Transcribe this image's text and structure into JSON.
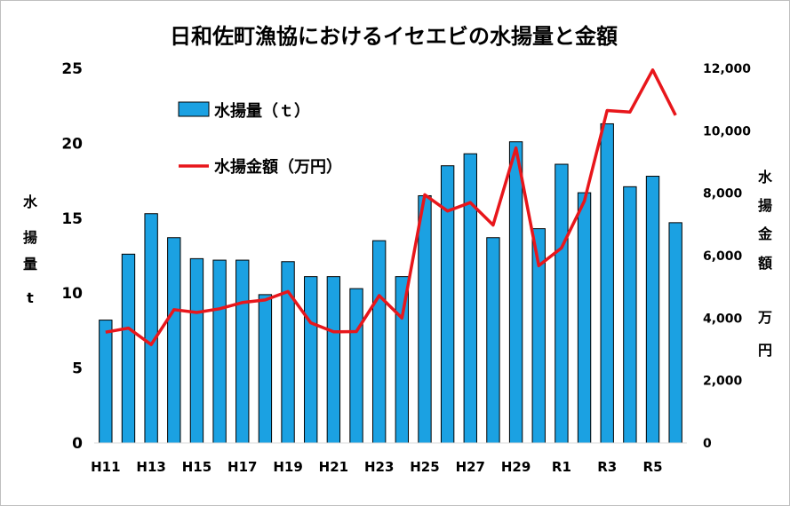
{
  "chart_data": {
    "type": "bar",
    "title": "日和佐町漁協におけるイセエビの水揚量と金額",
    "categories": [
      "H11",
      "H12",
      "H13",
      "H14",
      "H15",
      "H16",
      "H17",
      "H18",
      "H19",
      "H20",
      "H21",
      "H22",
      "H23",
      "H24",
      "H25",
      "H26",
      "H27",
      "H28",
      "H29",
      "H30",
      "R1",
      "R2",
      "R3",
      "R4",
      "R5",
      "R6"
    ],
    "x_tick_labels": [
      "H11",
      "H13",
      "H15",
      "H17",
      "H19",
      "H21",
      "H23",
      "H25",
      "H27",
      "H29",
      "R1",
      "R3",
      "R5"
    ],
    "series": [
      {
        "name": "水揚量（ｔ）",
        "chart_type": "bar",
        "axis": "left",
        "color": "#1ba1e2",
        "values": [
          8.2,
          12.6,
          15.3,
          13.7,
          12.3,
          12.2,
          12.2,
          9.9,
          12.1,
          11.1,
          11.1,
          10.3,
          13.5,
          11.1,
          16.5,
          18.5,
          19.3,
          13.7,
          20.1,
          14.3,
          18.6,
          16.7,
          21.3,
          17.1,
          17.8,
          14.7
        ]
      },
      {
        "name": "水揚金額（万円）",
        "chart_type": "line",
        "axis": "right",
        "color": "#e8161b",
        "values": [
          3550,
          3680,
          3150,
          4270,
          4180,
          4300,
          4500,
          4580,
          4850,
          3850,
          3560,
          3570,
          4720,
          4000,
          7950,
          7430,
          7700,
          6980,
          9450,
          5680,
          6250,
          7750,
          10650,
          10600,
          11950,
          10500
        ]
      }
    ],
    "y_left": {
      "label_chars": [
        "水",
        "揚",
        "量",
        "t"
      ],
      "ylim": [
        0,
        25
      ],
      "ticks": [
        "0",
        "5",
        "10",
        "15",
        "20",
        "25"
      ]
    },
    "y_right": {
      "label_chars": [
        "水",
        "揚",
        "金",
        "額",
        "万",
        "円"
      ],
      "ylim": [
        0,
        12000
      ],
      "ticks": [
        "0",
        "2,000",
        "4,000",
        "6,000",
        "8,000",
        "10,000",
        "12,000"
      ]
    },
    "legend_position": "top-left (inside plot)",
    "grid": false
  }
}
